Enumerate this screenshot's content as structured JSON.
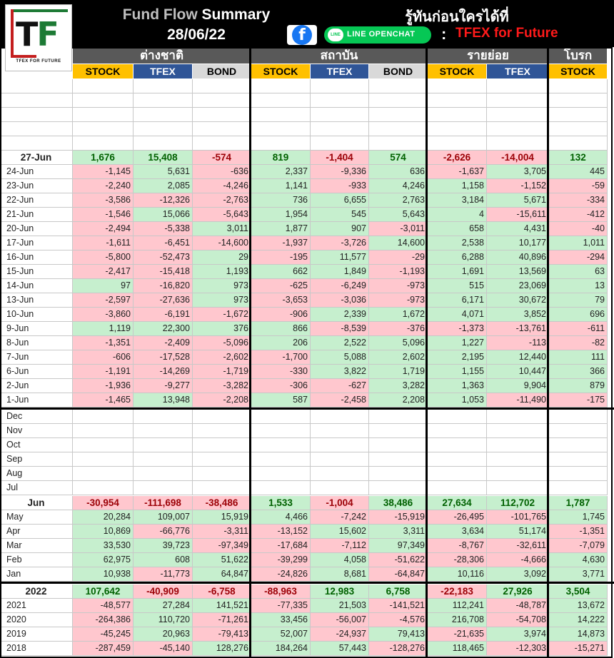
{
  "header": {
    "title_part1": "Fund Flow",
    "title_part2": "Summary",
    "date": "28/06/22",
    "thai_tagline": "รู้ทันก่อนใครได้ที่",
    "line_label": "LINE OPENCHAT",
    "colon": ":",
    "brand_tag": "TFEX for Future",
    "logo_text": "TF",
    "logo_sub": "TFEX FOR FUTURE",
    "facebook_glyph": "f",
    "line_icon_text": "LINE",
    "icons": [
      "facebook-icon",
      "line-icon"
    ]
  },
  "colors": {
    "positive": "#c6efce",
    "negative": "#ffc7ce",
    "stock": "#ffc000",
    "tfex": "#2f5597",
    "bond": "#d9d9d9",
    "group": "#595959",
    "brand_red": "#ff1a1a",
    "brand_green": "#1d7a35"
  },
  "groups": [
    {
      "label": "ต่างชาติ",
      "cols": [
        "STOCK",
        "TFEX",
        "BOND"
      ]
    },
    {
      "label": "สถาบัน",
      "cols": [
        "STOCK",
        "TFEX",
        "BOND"
      ]
    },
    {
      "label": "รายย่อย",
      "cols": [
        "STOCK",
        "TFEX"
      ]
    },
    {
      "label": "โบรก",
      "cols": [
        "STOCK"
      ]
    }
  ],
  "daily": {
    "summary": {
      "label": "27-Jun",
      "values": [
        "1,676",
        "15,408",
        "-574",
        "819",
        "-1,404",
        "574",
        "-2,626",
        "-14,004",
        "132"
      ]
    },
    "rows": [
      {
        "label": "24-Jun",
        "values": [
          "-1,145",
          "5,631",
          "-636",
          "2,337",
          "-9,336",
          "636",
          "-1,637",
          "3,705",
          "445"
        ]
      },
      {
        "label": "23-Jun",
        "values": [
          "-2,240",
          "2,085",
          "-4,246",
          "1,141",
          "-933",
          "4,246",
          "1,158",
          "-1,152",
          "-59"
        ]
      },
      {
        "label": "22-Jun",
        "values": [
          "-3,586",
          "-12,326",
          "-2,763",
          "736",
          "6,655",
          "2,763",
          "3,184",
          "5,671",
          "-334"
        ]
      },
      {
        "label": "21-Jun",
        "values": [
          "-1,546",
          "15,066",
          "-5,643",
          "1,954",
          "545",
          "5,643",
          "4",
          "-15,611",
          "-412"
        ]
      },
      {
        "label": "20-Jun",
        "values": [
          "-2,494",
          "-5,338",
          "3,011",
          "1,877",
          "907",
          "-3,011",
          "658",
          "4,431",
          "-40"
        ]
      },
      {
        "label": "17-Jun",
        "values": [
          "-1,611",
          "-6,451",
          "-14,600",
          "-1,937",
          "-3,726",
          "14,600",
          "2,538",
          "10,177",
          "1,011"
        ]
      },
      {
        "label": "16-Jun",
        "values": [
          "-5,800",
          "-52,473",
          "29",
          "-195",
          "11,577",
          "-29",
          "6,288",
          "40,896",
          "-294"
        ]
      },
      {
        "label": "15-Jun",
        "values": [
          "-2,417",
          "-15,418",
          "1,193",
          "662",
          "1,849",
          "-1,193",
          "1,691",
          "13,569",
          "63"
        ]
      },
      {
        "label": "14-Jun",
        "values": [
          "97",
          "-16,820",
          "973",
          "-625",
          "-6,249",
          "-973",
          "515",
          "23,069",
          "13"
        ]
      },
      {
        "label": "13-Jun",
        "values": [
          "-2,597",
          "-27,636",
          "973",
          "-3,653",
          "-3,036",
          "-973",
          "6,171",
          "30,672",
          "79"
        ]
      },
      {
        "label": "10-Jun",
        "values": [
          "-3,860",
          "-6,191",
          "-1,672",
          "-906",
          "2,339",
          "1,672",
          "4,071",
          "3,852",
          "696"
        ]
      },
      {
        "label": "9-Jun",
        "values": [
          "1,119",
          "22,300",
          "376",
          "866",
          "-8,539",
          "-376",
          "-1,373",
          "-13,761",
          "-611"
        ]
      },
      {
        "label": "8-Jun",
        "values": [
          "-1,351",
          "-2,409",
          "-5,096",
          "206",
          "2,522",
          "5,096",
          "1,227",
          "-113",
          "-82"
        ]
      },
      {
        "label": "7-Jun",
        "values": [
          "-606",
          "-17,528",
          "-2,602",
          "-1,700",
          "5,088",
          "2,602",
          "2,195",
          "12,440",
          "111"
        ]
      },
      {
        "label": "6-Jun",
        "values": [
          "-1,191",
          "-14,269",
          "-1,719",
          "-330",
          "3,822",
          "1,719",
          "1,155",
          "10,447",
          "366"
        ]
      },
      {
        "label": "2-Jun",
        "values": [
          "-1,936",
          "-9,277",
          "-3,282",
          "-306",
          "-627",
          "3,282",
          "1,363",
          "9,904",
          "879"
        ]
      },
      {
        "label": "1-Jun",
        "values": [
          "-1,465",
          "13,948",
          "-2,208",
          "587",
          "-2,458",
          "2,208",
          "1,053",
          "-11,490",
          "-175"
        ]
      }
    ]
  },
  "monthly": {
    "empty_rows": [
      "Dec",
      "Nov",
      "Oct",
      "Sep",
      "Aug",
      "Jul"
    ],
    "summary": {
      "label": "Jun",
      "values": [
        "-30,954",
        "-111,698",
        "-38,486",
        "1,533",
        "-1,004",
        "38,486",
        "27,634",
        "112,702",
        "1,787"
      ]
    },
    "rows": [
      {
        "label": "May",
        "values": [
          "20,284",
          "109,007",
          "15,919",
          "4,466",
          "-7,242",
          "-15,919",
          "-26,495",
          "-101,765",
          "1,745"
        ]
      },
      {
        "label": "Apr",
        "values": [
          "10,869",
          "-66,776",
          "-3,311",
          "-13,152",
          "15,602",
          "3,311",
          "3,634",
          "51,174",
          "-1,351"
        ]
      },
      {
        "label": "Mar",
        "values": [
          "33,530",
          "39,723",
          "-97,349",
          "-17,684",
          "-7,112",
          "97,349",
          "-8,767",
          "-32,611",
          "-7,079"
        ]
      },
      {
        "label": "Feb",
        "values": [
          "62,975",
          "608",
          "51,622",
          "-39,299",
          "4,058",
          "-51,622",
          "-28,306",
          "-4,666",
          "4,630"
        ]
      },
      {
        "label": "Jan",
        "values": [
          "10,938",
          "-11,773",
          "64,847",
          "-24,826",
          "8,681",
          "-64,847",
          "10,116",
          "3,092",
          "3,771"
        ]
      }
    ]
  },
  "yearly": {
    "summary": {
      "label": "2022",
      "values": [
        "107,642",
        "-40,909",
        "-6,758",
        "-88,963",
        "12,983",
        "6,758",
        "-22,183",
        "27,926",
        "3,504"
      ]
    },
    "rows": [
      {
        "label": "2021",
        "values": [
          "-48,577",
          "27,284",
          "141,521",
          "-77,335",
          "21,503",
          "-141,521",
          "112,241",
          "-48,787",
          "13,672"
        ]
      },
      {
        "label": "2020",
        "values": [
          "-264,386",
          "110,720",
          "-71,261",
          "33,456",
          "-56,007",
          "-4,576",
          "216,708",
          "-54,708",
          "14,222"
        ]
      },
      {
        "label": "2019",
        "values": [
          "-45,245",
          "20,963",
          "-79,413",
          "52,007",
          "-24,937",
          "79,413",
          "-21,635",
          "3,974",
          "14,873"
        ]
      },
      {
        "label": "2018",
        "values": [
          "-287,459",
          "-45,140",
          "128,276",
          "184,264",
          "57,443",
          "-128,276",
          "118,465",
          "-12,303",
          "-15,271"
        ]
      }
    ]
  }
}
